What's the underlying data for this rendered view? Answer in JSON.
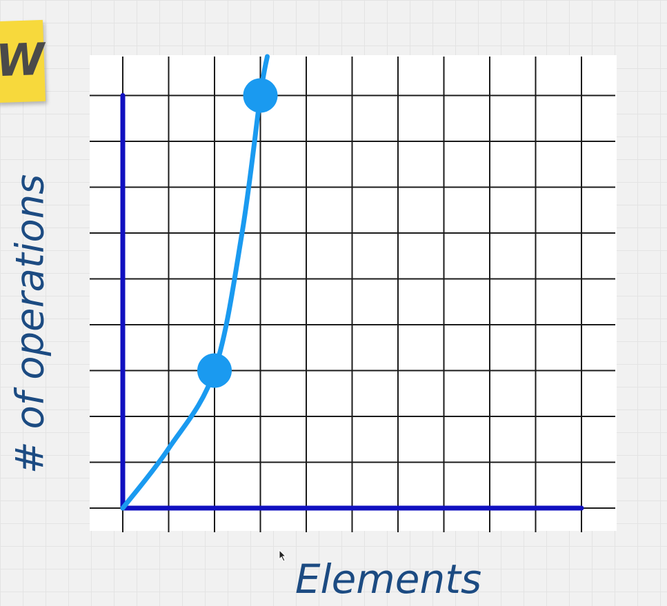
{
  "badge": {
    "text": "W",
    "color": "#f7d93c"
  },
  "chart_data": {
    "type": "line",
    "title": "",
    "xlabel": "Elements",
    "ylabel": "# of operations",
    "xlim": [
      0,
      10
    ],
    "ylim": [
      0,
      9
    ],
    "grid": true,
    "legend": "none",
    "series": [
      {
        "x": [
          0,
          1,
          2,
          2.6,
          3.0,
          3.15
        ],
        "values": [
          0,
          1.3,
          3,
          6,
          9,
          9.85
        ]
      }
    ],
    "highlighted_points": [
      {
        "x": 2,
        "y": 3
      },
      {
        "x": 3,
        "y": 9
      }
    ],
    "colors": {
      "axis": "#1010c0",
      "curve": "#1a9af0",
      "grid": "#1a1a1a",
      "labels": "#1c4b82"
    }
  }
}
